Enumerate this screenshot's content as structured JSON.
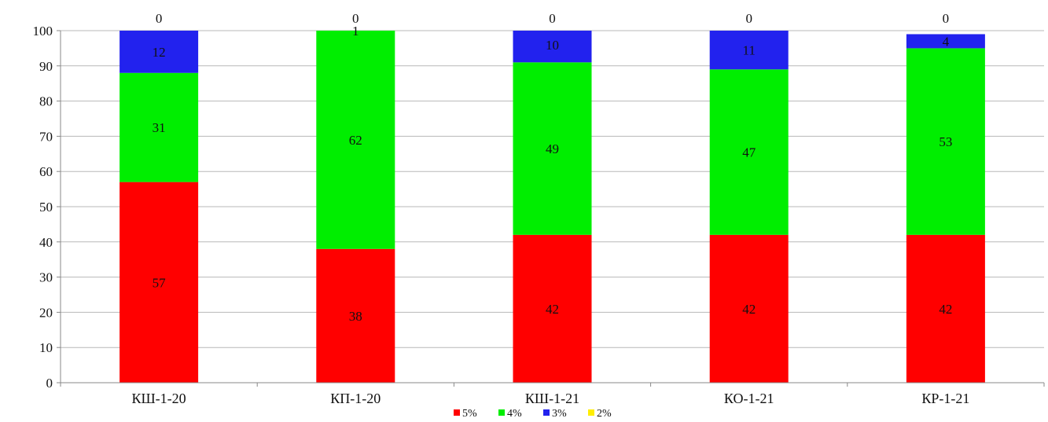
{
  "chart_data": {
    "type": "bar",
    "stacked": true,
    "categories": [
      "КШ-1-20",
      "КП-1-20",
      "КШ-1-21",
      "КО-1-21",
      "КР-1-21"
    ],
    "series": [
      {
        "name": "5%",
        "color": "#ff0000",
        "values": [
          57,
          38,
          42,
          42,
          42
        ]
      },
      {
        "name": "4%",
        "color": "#00ee00",
        "values": [
          31,
          62,
          49,
          47,
          53
        ]
      },
      {
        "name": "3%",
        "color": "#2222ee",
        "values": [
          12,
          1,
          10,
          11,
          4
        ]
      },
      {
        "name": "2%",
        "color": "#ffee00",
        "values": [
          0,
          0,
          0,
          0,
          0
        ]
      }
    ],
    "title": "",
    "xlabel": "",
    "ylabel": "",
    "ylim": [
      0,
      100
    ],
    "yticks": [
      0,
      10,
      20,
      30,
      40,
      50,
      60,
      70,
      80,
      90,
      100
    ],
    "grid": true,
    "legend": "bottom"
  }
}
